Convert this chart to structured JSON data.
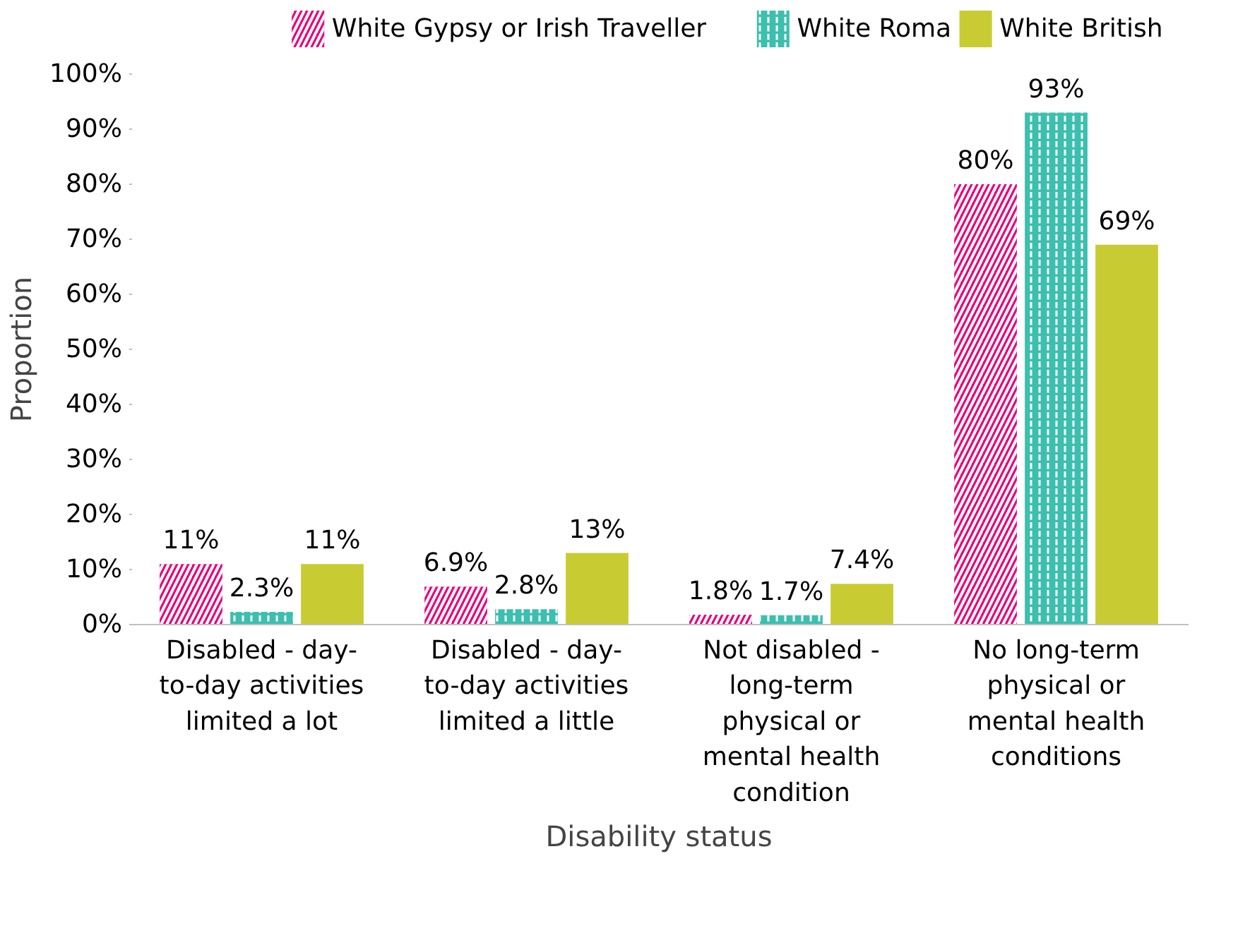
{
  "chart_data": {
    "type": "bar",
    "xlabel": "Disability status",
    "ylabel": "Proportion",
    "categories": [
      "Disabled - day-\nto-day activities\nlimited a lot",
      "Disabled - day-\nto-day activities\nlimited a little",
      "Not disabled -\nlong-term\nphysical or\nmental health\ncondition",
      "No long-term\nphysical or\nmental health\nconditions"
    ],
    "series": [
      {
        "name": "White Gypsy or Irish Traveller",
        "color": "#e5007d",
        "values": [
          11,
          6.9,
          1.8,
          80
        ],
        "value_labels": [
          "11%",
          "6.9%",
          "1.8%",
          "80%"
        ]
      },
      {
        "name": "White Roma",
        "color": "#3cbfae",
        "values": [
          2.3,
          2.8,
          1.7,
          93
        ],
        "value_labels": [
          "2.3%",
          "2.8%",
          "1.7%",
          "93%"
        ]
      },
      {
        "name": "White British",
        "color": "#c8cc32",
        "values": [
          11,
          13,
          7.4,
          69
        ],
        "value_labels": [
          "11%",
          "13%",
          "7.4%",
          "69%"
        ]
      }
    ],
    "ylim": [
      0,
      100
    ],
    "yticks": [
      {
        "value": 0,
        "label": "0%"
      },
      {
        "value": 10,
        "label": "10%"
      },
      {
        "value": 20,
        "label": "20%"
      },
      {
        "value": 30,
        "label": "30%"
      },
      {
        "value": 40,
        "label": "40%"
      },
      {
        "value": 50,
        "label": "50%"
      },
      {
        "value": 60,
        "label": "60%"
      },
      {
        "value": 70,
        "label": "70%"
      },
      {
        "value": 80,
        "label": "80%"
      },
      {
        "value": 90,
        "label": "90%"
      },
      {
        "value": 100,
        "label": "100%"
      }
    ],
    "grid": false,
    "legend": "top"
  }
}
